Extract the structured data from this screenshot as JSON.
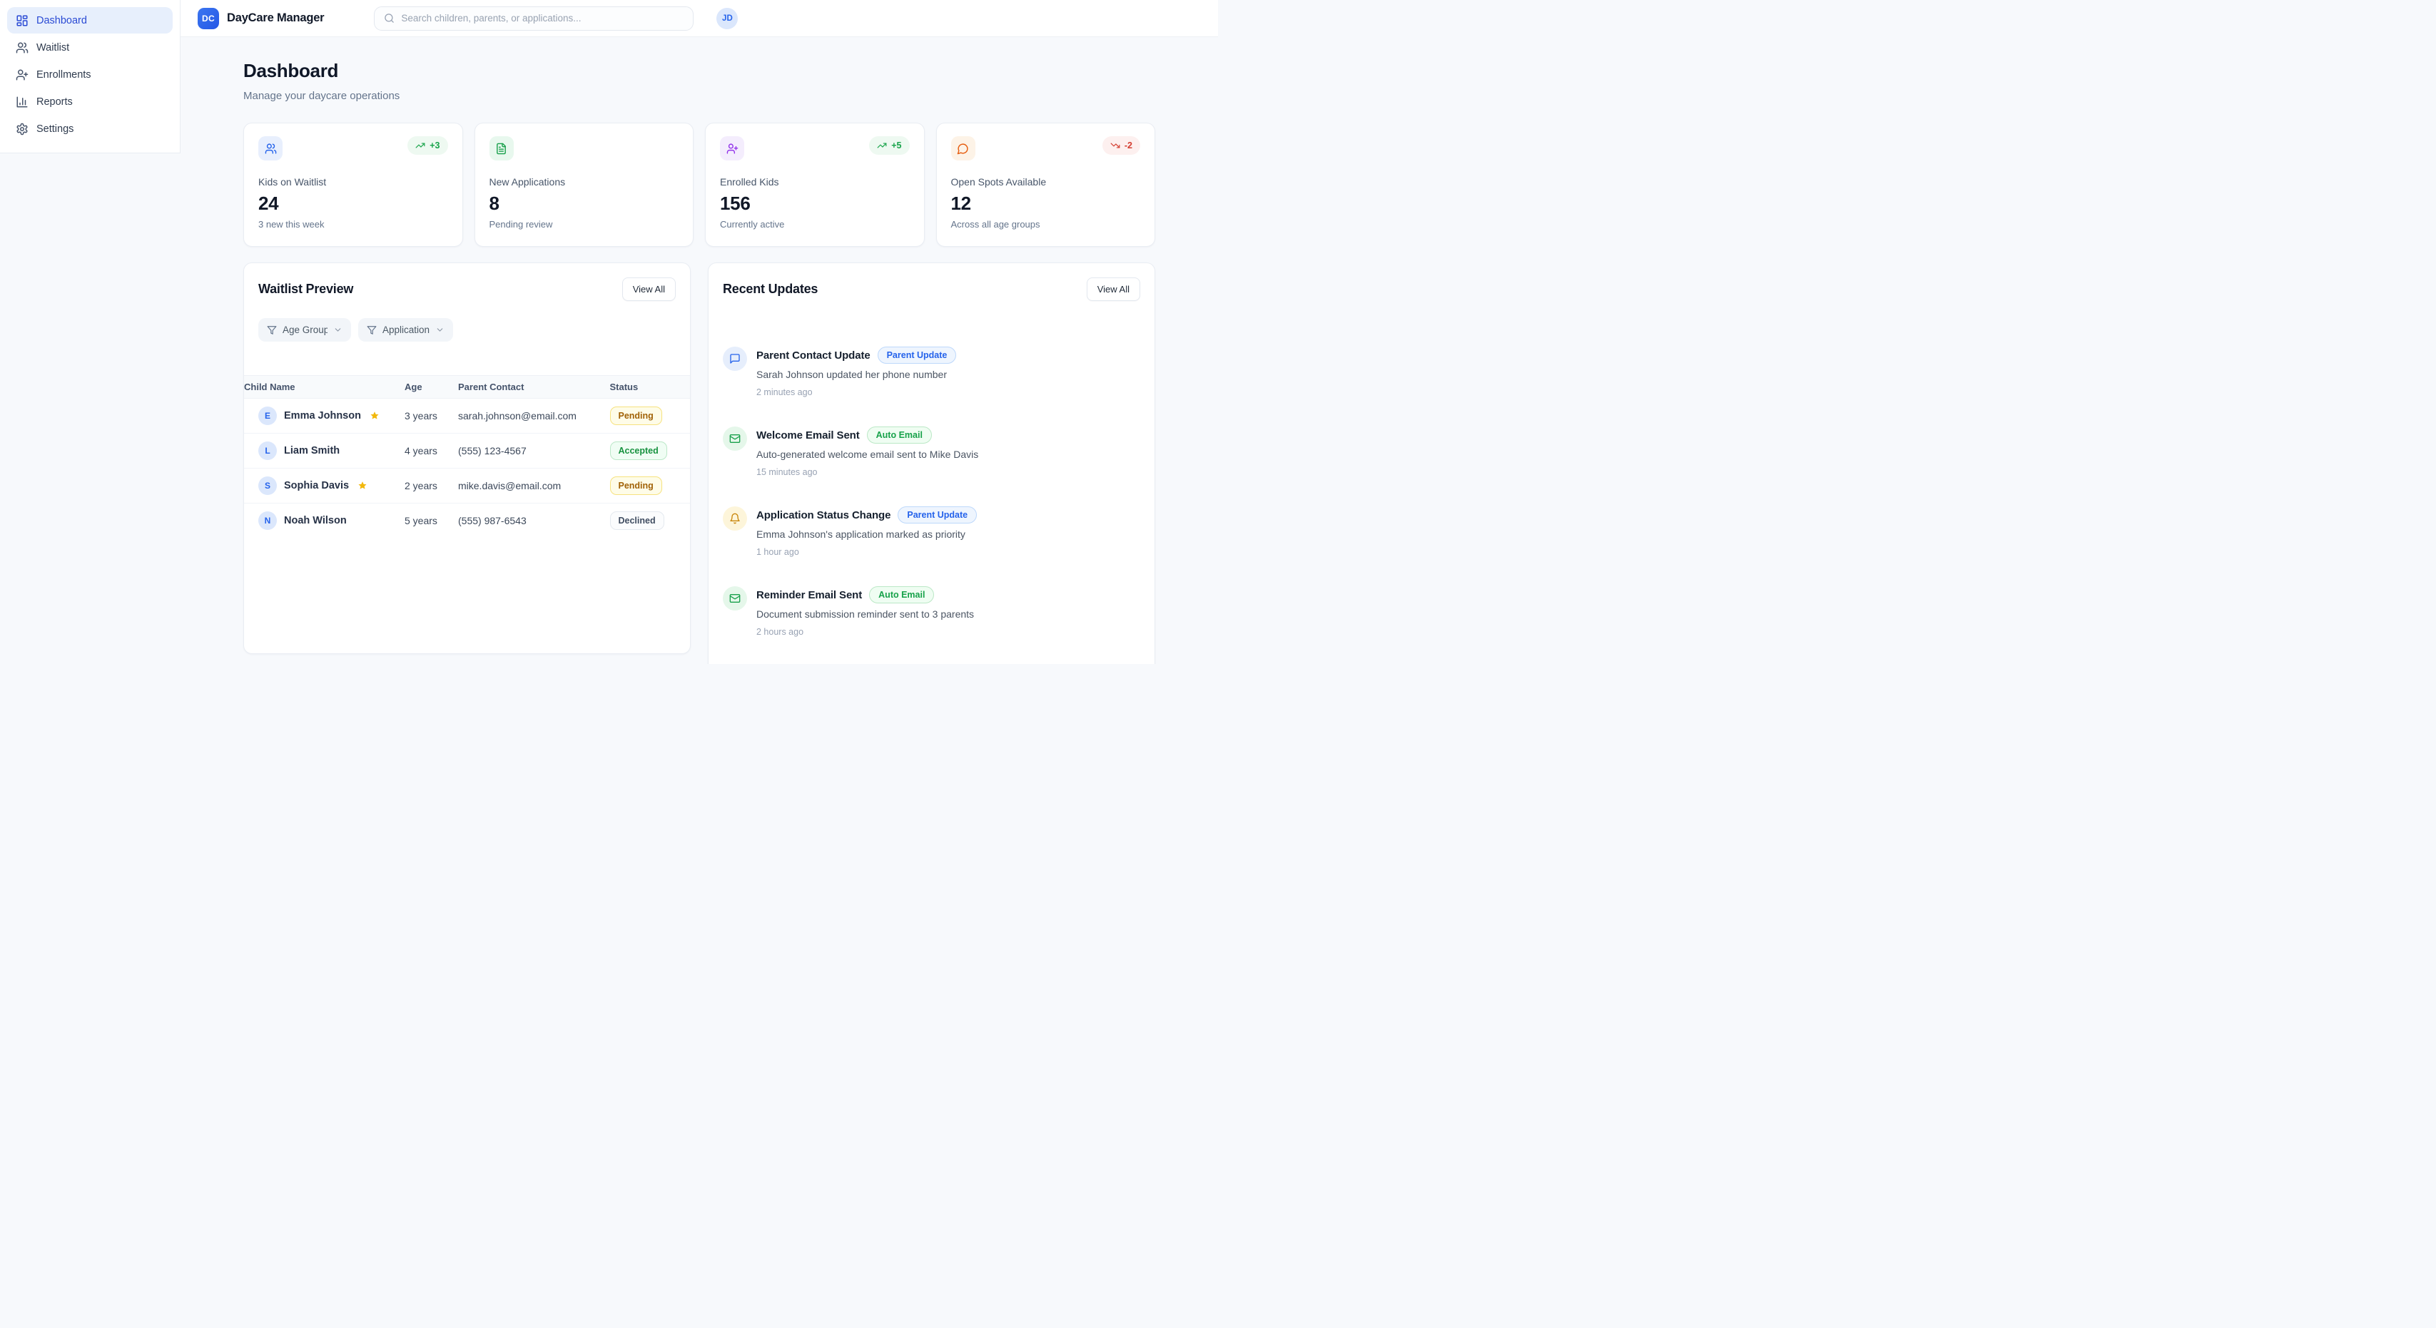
{
  "app": {
    "brand_initials": "DC",
    "brand_name": "DayCare Manager",
    "search_placeholder": "Search children, parents, or applications...",
    "avatar_initials": "JD"
  },
  "colors": {
    "brand_blue": "#2563eb",
    "sidebar_active_bg": "#e7effc",
    "page_bg": "#f7f9fc",
    "positive_green": "#18a34a",
    "negative_red": "#d33c2f",
    "pending_amber": "#a16207",
    "accepted_green": "#17923f",
    "star_gold": "#f2b80c"
  },
  "sidebar": {
    "items": [
      {
        "label": "Dashboard",
        "icon": "layout-dashboard",
        "state": "active"
      },
      {
        "label": "Waitlist",
        "icon": "users",
        "state": ""
      },
      {
        "label": "Enrollments",
        "icon": "user-plus",
        "state": ""
      },
      {
        "label": "Reports",
        "icon": "chart-column",
        "state": ""
      },
      {
        "label": "Settings",
        "icon": "settings",
        "state": ""
      }
    ]
  },
  "page": {
    "title": "Dashboard",
    "subtitle": "Manage your daycare operations"
  },
  "stats": {
    "cards": [
      {
        "label": "Kids on Waitlist",
        "value": "24",
        "sub": "3 new this week",
        "icon": "users",
        "icon_class": "blue",
        "trend": "+3",
        "trend_class": "up",
        "trend_icon": "trending-up"
      },
      {
        "label": "New Applications",
        "value": "8",
        "sub": "Pending review",
        "icon": "file-text",
        "icon_class": "green",
        "trend": "",
        "trend_class": "",
        "trend_icon": ""
      },
      {
        "label": "Enrolled Kids",
        "value": "156",
        "sub": "Currently active",
        "icon": "user-plus",
        "icon_class": "purple",
        "trend": "+5",
        "trend_class": "up",
        "trend_icon": "trending-up"
      },
      {
        "label": "Open Spots Available",
        "value": "12",
        "sub": "Across all age groups",
        "icon": "message-circle",
        "icon_class": "orange",
        "trend": "-2",
        "trend_class": "down",
        "trend_icon": "trending-down"
      }
    ]
  },
  "waitlist": {
    "title": "Waitlist Preview",
    "view_all": "View All",
    "filters": [
      {
        "label": "Age Group"
      },
      {
        "label": "Application"
      }
    ],
    "columns": [
      "Child Name",
      "Age",
      "Parent Contact",
      "Status"
    ],
    "rows": [
      {
        "initial": "E",
        "name": "Emma Johnson",
        "priority": true,
        "age": "3 years",
        "contact": "sarah.johnson@email.com",
        "status": "Pending",
        "status_class": "pending"
      },
      {
        "initial": "L",
        "name": "Liam Smith",
        "priority": false,
        "age": "4 years",
        "contact": "(555) 123-4567",
        "status": "Accepted",
        "status_class": "accepted"
      },
      {
        "initial": "S",
        "name": "Sophia Davis",
        "priority": true,
        "age": "2 years",
        "contact": "mike.davis@email.com",
        "status": "Pending",
        "status_class": "pending"
      },
      {
        "initial": "N",
        "name": "Noah Wilson",
        "priority": false,
        "age": "5 years",
        "contact": "(555) 987-6543",
        "status": "Declined",
        "status_class": "declined"
      }
    ]
  },
  "updates": {
    "title": "Recent Updates",
    "view_all": "View All",
    "items": [
      {
        "icon": "message-square",
        "icon_class": "blue",
        "title": "Parent Contact Update",
        "badge": "Parent Update",
        "badge_class": "blue",
        "desc": "Sarah Johnson updated her phone number",
        "time": "2 minutes ago"
      },
      {
        "icon": "mail",
        "icon_class": "green",
        "title": "Welcome Email Sent",
        "badge": "Auto Email",
        "badge_class": "green",
        "desc": "Auto-generated welcome email sent to Mike Davis",
        "time": "15 minutes ago"
      },
      {
        "icon": "bell",
        "icon_class": "amber",
        "title": "Application Status Change",
        "badge": "Parent Update",
        "badge_class": "blue",
        "desc": "Emma Johnson's application marked as priority",
        "time": "1 hour ago"
      },
      {
        "icon": "mail",
        "icon_class": "green",
        "title": "Reminder Email Sent",
        "badge": "Auto Email",
        "badge_class": "green",
        "desc": "Document submission reminder sent to 3 parents",
        "time": "2 hours ago"
      },
      {
        "icon": "",
        "icon_class": "purple",
        "title": "",
        "badge": "",
        "badge_class": "stub-blue",
        "desc": "",
        "time": ""
      }
    ]
  }
}
